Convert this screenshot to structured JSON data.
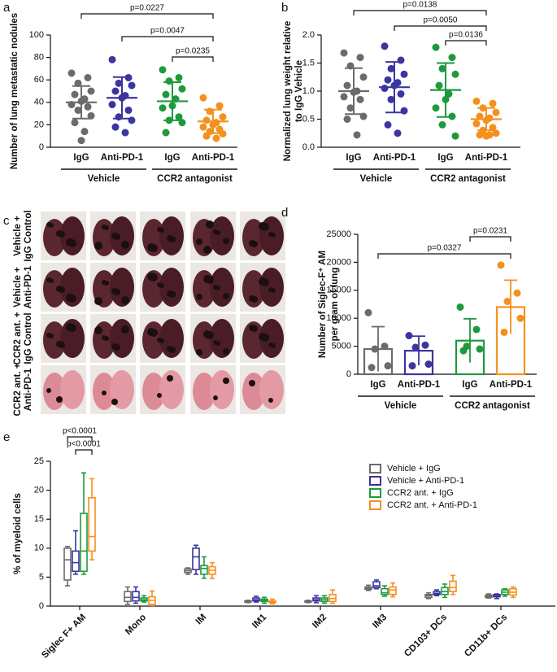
{
  "chart_data": [
    {
      "panel_label": "a",
      "type": "dot",
      "ylabel": "Number of lung metastatic nodules",
      "ylim": [
        0,
        100
      ],
      "yticks": [
        0,
        20,
        40,
        60,
        80,
        100
      ],
      "categories": [
        "IgG",
        "Anti-PD-1",
        "IgG",
        "Anti-PD-1"
      ],
      "groups": [
        "Vehicle",
        "CCR2 antagonist"
      ],
      "annotations": [
        "p=0.0227",
        "p=0.0047",
        "p=0.0235"
      ],
      "colors": [
        "#6b6b6b",
        "#3b35a0",
        "#1e9a3c",
        "#f5901e"
      ],
      "values": [
        [
          66,
          62,
          57,
          50,
          47,
          43,
          41,
          38,
          36,
          33,
          28,
          22,
          14,
          6
        ],
        [
          78,
          62,
          57,
          55,
          50,
          46,
          44,
          38,
          33,
          27,
          24,
          18,
          13
        ],
        [
          69,
          62,
          59,
          52,
          47,
          43,
          37,
          35,
          27,
          24,
          22,
          13
        ],
        [
          44,
          37,
          32,
          27,
          24,
          22,
          20,
          18,
          16,
          14,
          12,
          10,
          8
        ]
      ],
      "means": [
        40,
        44,
        41,
        23
      ],
      "sd": [
        14.5,
        18.5,
        17,
        10.5
      ]
    },
    {
      "panel_label": "b",
      "type": "dot",
      "ylabel": [
        "Normalized lung weight relative",
        "to IgG Vehicle"
      ],
      "ylim": [
        0,
        2
      ],
      "yticks": [
        {
          "value": 0,
          "label": "0.0"
        },
        {
          "value": 0.5,
          "label": "0.5"
        },
        {
          "value": 1,
          "label": "1.0"
        },
        {
          "value": 1.5,
          "label": "1.5"
        },
        {
          "value": 2,
          "label": "2.0"
        }
      ],
      "categories": [
        "IgG",
        "Anti-PD-1",
        "IgG",
        "Anti-PD-1"
      ],
      "groups": [
        "Vehicle",
        "CCR2 antagonist"
      ],
      "annotations": [
        "p=0.0138",
        "p=0.0050",
        "p=0.0136"
      ],
      "colors": [
        "#6b6b6b",
        "#3b35a0",
        "#1e9a3c",
        "#f5901e"
      ],
      "values": [
        [
          1.68,
          1.6,
          1.45,
          1.25,
          1.1,
          1.0,
          0.98,
          0.9,
          0.85,
          0.7,
          0.55,
          0.5,
          0.22
        ],
        [
          1.8,
          1.55,
          1.4,
          1.3,
          1.2,
          1.15,
          1.1,
          1.05,
          0.95,
          0.85,
          0.65,
          0.4,
          0.25
        ],
        [
          1.78,
          1.6,
          1.4,
          1.3,
          1.1,
          0.95,
          0.85,
          0.7,
          0.55,
          0.4,
          0.2
        ],
        [
          0.82,
          0.78,
          0.7,
          0.62,
          0.55,
          0.52,
          0.48,
          0.42,
          0.35,
          0.3,
          0.25,
          0.22,
          0.22,
          0.2
        ]
      ],
      "means": [
        1.0,
        1.07,
        1.02,
        0.5
      ],
      "sd": [
        0.41,
        0.45,
        0.48,
        0.2
      ]
    },
    {
      "panel_label": "c",
      "type": "image",
      "row_labels": [
        [
          "Vehicle +",
          "IgG Control"
        ],
        [
          "Vehicle +",
          "Anti-PD-1"
        ],
        [
          "CCR2 ant. +",
          "IgG Control"
        ],
        [
          "CCR2 ant. +",
          "Anti-PD-1"
        ]
      ]
    },
    {
      "panel_label": "d",
      "type": "bar",
      "ylabel": [
        "Number of Siglec-F⁺ AM",
        "per gram of lung"
      ],
      "ylim": [
        0,
        25000
      ],
      "yticks": [
        0,
        5000,
        10000,
        15000,
        20000,
        25000
      ],
      "categories": [
        "IgG",
        "Anti-PD-1",
        "IgG",
        "Anti-PD-1"
      ],
      "groups": [
        "Vehicle",
        "CCR2 antagonist"
      ],
      "annotations": [
        "p=0.0231",
        "p=0.0327"
      ],
      "colors": [
        "#6b6b6b",
        "#3b35a0",
        "#1e9a3c",
        "#f5901e"
      ],
      "values": [
        4500,
        4200,
        6000,
        12000
      ],
      "sd": [
        4000,
        2600,
        3900,
        4800
      ],
      "points": [
        [
          11000,
          5000,
          4500,
          1500,
          1200
        ],
        [
          6900,
          5200,
          4800,
          1800,
          1500
        ],
        [
          12000,
          8000,
          5000,
          4500,
          4200
        ],
        [
          19500,
          14500,
          13000,
          10000,
          7500
        ]
      ]
    },
    {
      "panel_label": "e",
      "type": "box",
      "ylabel": "% of myeloid cells",
      "ylim": [
        0,
        25
      ],
      "yticks": [
        0,
        5,
        10,
        15,
        20,
        25
      ],
      "categories": [
        "Siglec F+ AM",
        "Mono",
        "IM",
        "IM1",
        "IM2",
        "IM3",
        "CD103+ DCs",
        "CD11b+ DCs"
      ],
      "annotations": [
        "p<0.0001",
        "p<0.0001"
      ],
      "series": [
        {
          "name": "Vehicle + IgG",
          "color": "#6b6b6b",
          "values": [
            [
              3.5,
              4.5,
              8,
              10,
              10.3
            ],
            [
              0.3,
              0.8,
              1.5,
              2.5,
              3.3
            ],
            [
              5.5,
              5.8,
              6.1,
              6.4,
              6.6
            ],
            [
              0.6,
              0.7,
              0.8,
              0.9,
              1
            ],
            [
              0.6,
              0.7,
              0.8,
              0.9,
              1
            ],
            [
              2.7,
              2.9,
              3.1,
              3.3,
              3.6
            ],
            [
              1.3,
              1.5,
              1.8,
              2,
              2.3
            ],
            [
              1.4,
              1.5,
              1.7,
              1.9,
              2.1
            ]
          ]
        },
        {
          "name": "Vehicle + Anti-PD-1",
          "color": "#3b35a0",
          "values": [
            [
              5.5,
              6,
              7.5,
              9.5,
              13
            ],
            [
              0.5,
              0.9,
              1.5,
              2.5,
              3.3
            ],
            [
              5.5,
              6.3,
              8.5,
              10,
              10.5
            ],
            [
              0.7,
              0.9,
              1.1,
              1.4,
              1.7
            ],
            [
              0.6,
              0.9,
              1.1,
              1.4,
              1.8
            ],
            [
              3,
              3.2,
              3.5,
              4.2,
              4.5
            ],
            [
              1.8,
              2,
              2.2,
              2.5,
              2.8
            ],
            [
              1.3,
              1.6,
              1.8,
              2,
              2.1
            ]
          ]
        },
        {
          "name": "CCR2 ant. + IgG",
          "color": "#1e9a3c",
          "values": [
            [
              5.5,
              6,
              9.5,
              16,
              23
            ],
            [
              0.7,
              0.9,
              1.1,
              1.4,
              1.8
            ],
            [
              4.8,
              5.5,
              6.5,
              7,
              8.5
            ],
            [
              0.5,
              0.8,
              1,
              1.2,
              1.5
            ],
            [
              0.5,
              0.8,
              1.1,
              1.4,
              1.8
            ],
            [
              1.7,
              2,
              2.3,
              3,
              3.5
            ],
            [
              1.5,
              2,
              2.5,
              3.2,
              3.8
            ],
            [
              1.7,
              2,
              2.4,
              2.8,
              3
            ]
          ]
        },
        {
          "name": "CCR2 ant. + Anti-PD-1",
          "color": "#f5901e",
          "values": [
            [
              8,
              9.5,
              12,
              18.7,
              22
            ],
            [
              0.1,
              0.3,
              1,
              1.6,
              2.6
            ],
            [
              4.8,
              5.5,
              6.2,
              6.8,
              7.5
            ],
            [
              0.4,
              0.6,
              0.8,
              0.9,
              1.2
            ],
            [
              0.5,
              0.8,
              1.3,
              2,
              2.8
            ],
            [
              1.6,
              2,
              2.8,
              3.3,
              4
            ],
            [
              2,
              2.5,
              3.2,
              4.3,
              5.3
            ],
            [
              1.5,
              1.9,
              2.4,
              3,
              3.3
            ]
          ]
        }
      ]
    }
  ]
}
